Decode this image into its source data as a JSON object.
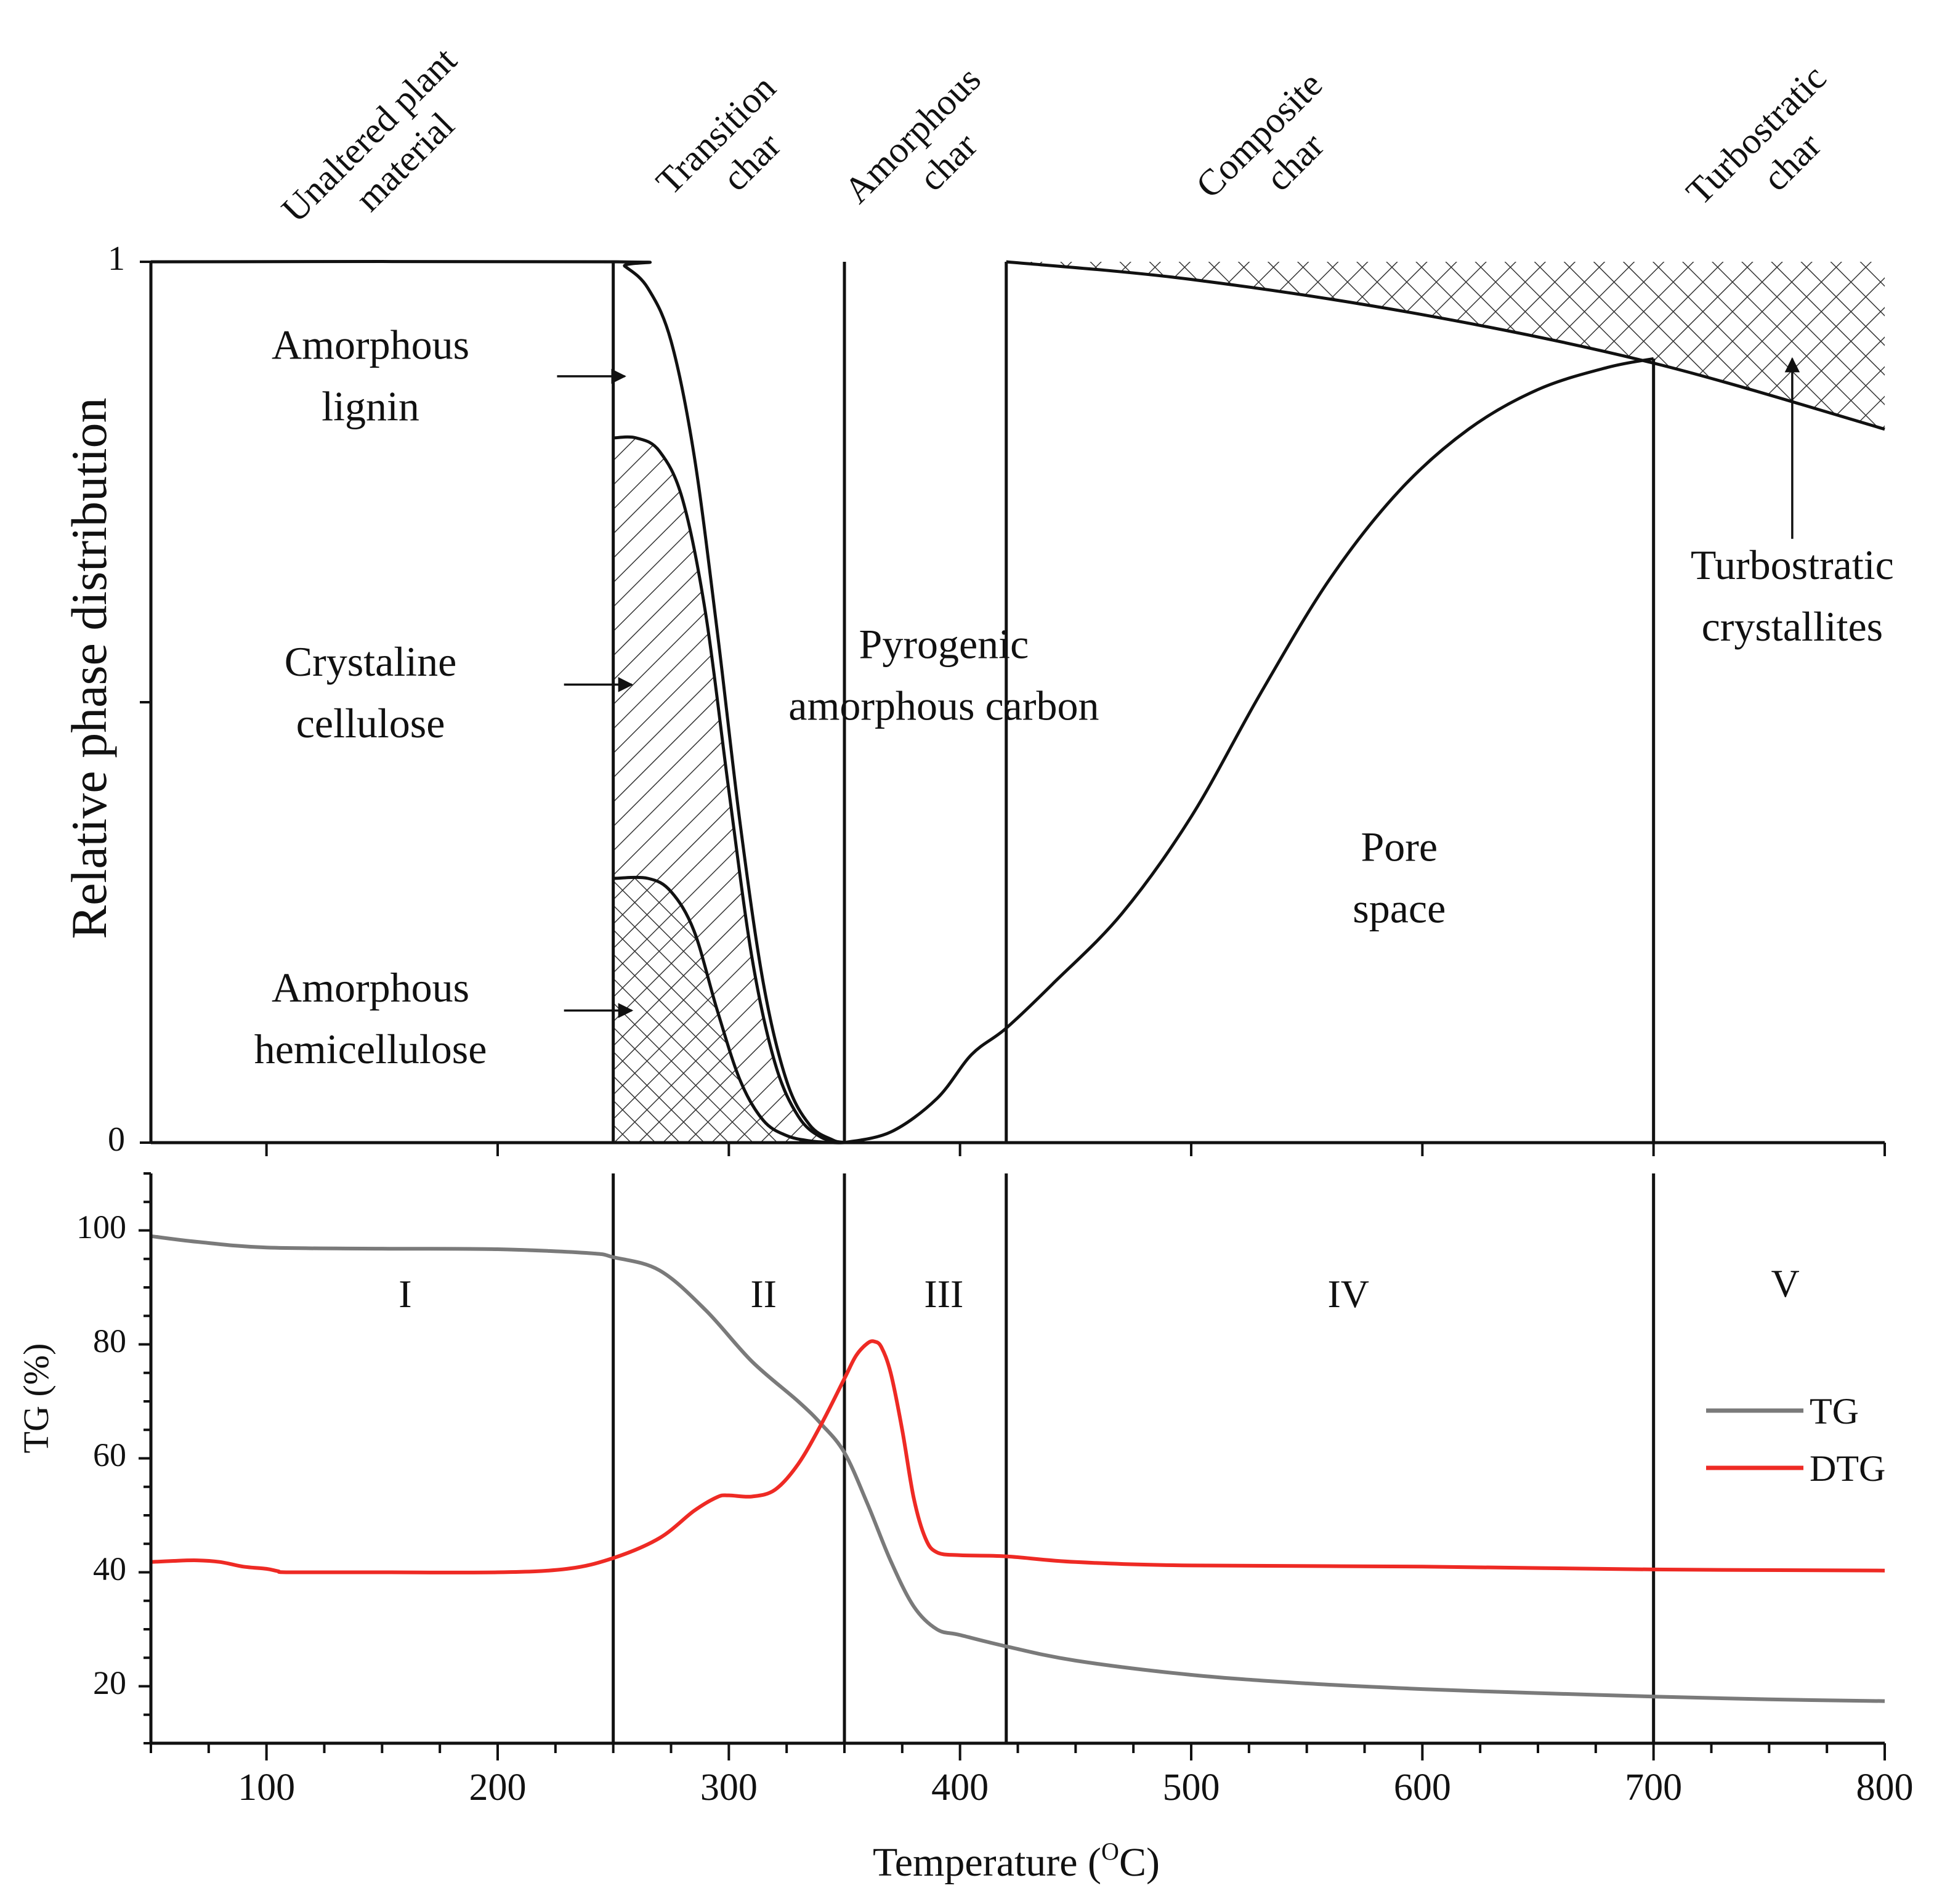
{
  "colors": {
    "tg": "#7a7a7a",
    "dtg": "#ee2a24",
    "ink": "#111111",
    "hatch": "#333333"
  },
  "chart_data": [
    {
      "type": "area",
      "name": "phase-distribution",
      "ylabel": "Relative phase distribution",
      "xlim": [
        50,
        800
      ],
      "ylim": [
        0,
        1
      ],
      "y_ticks": [
        0,
        0.5,
        1
      ],
      "y_tick_labels": [
        "0",
        "",
        "1"
      ],
      "stages": [
        {
          "line1": "Unaltered plant",
          "line2": "material",
          "x": 150
        },
        {
          "line1": "Transition",
          "line2": "char",
          "x": 300
        },
        {
          "line1": "Amorphous",
          "line2": "char",
          "x": 385
        },
        {
          "line1": "Composite",
          "line2": "char",
          "x": 535
        },
        {
          "line1": "Turbostratic",
          "line2": "char",
          "x": 750
        }
      ],
      "boundaries": [
        {
          "x": 250,
          "y0": 0,
          "y1": 1
        },
        {
          "x": 350,
          "y0": 0,
          "y1": 1
        },
        {
          "x": 420,
          "y0": 0,
          "y1": 1
        },
        {
          "x": 700,
          "y0": 0,
          "y1": 0.89
        }
      ],
      "series": [
        {
          "name": "Amorphous lignin (total plant material)",
          "x": [
            50,
            250,
            255,
            265,
            275,
            285,
            295,
            305,
            315,
            325,
            335,
            345,
            350
          ],
          "y": [
            1,
            1,
            0.995,
            0.97,
            0.91,
            0.78,
            0.58,
            0.36,
            0.18,
            0.07,
            0.02,
            0.003,
            0
          ]
        },
        {
          "name": "Crystaline cellulose (upper bound)",
          "x": [
            250,
            260,
            270,
            280,
            290,
            300,
            310,
            320,
            330,
            340,
            350
          ],
          "y": [
            0.8,
            0.8,
            0.785,
            0.73,
            0.6,
            0.4,
            0.21,
            0.09,
            0.03,
            0.006,
            0
          ]
        },
        {
          "name": "Amorphous hemicellulose (upper bound)",
          "x": [
            250,
            265,
            275,
            285,
            295,
            305,
            315,
            325,
            335,
            345,
            350
          ],
          "y": [
            0.3,
            0.3,
            0.285,
            0.24,
            0.15,
            0.07,
            0.025,
            0.008,
            0.002,
            0,
            0
          ]
        },
        {
          "name": "Pyrogenic amorphous carbon / pore space boundary",
          "x": [
            350,
            370,
            390,
            405,
            420,
            440,
            470,
            500,
            530,
            560,
            590,
            620,
            650,
            680,
            700
          ],
          "y": [
            0,
            0.012,
            0.05,
            0.1,
            0.13,
            0.18,
            0.26,
            0.37,
            0.51,
            0.64,
            0.74,
            0.81,
            0.855,
            0.88,
            0.89
          ]
        },
        {
          "name": "Turbostratic crystallites (lower bound)",
          "x": [
            420,
            500,
            600,
            700,
            800
          ],
          "y": [
            1,
            0.98,
            0.94,
            0.885,
            0.81
          ]
        }
      ],
      "annotations": [
        {
          "line1": "Amorphous",
          "line2": "lignin",
          "x": 145,
          "y": 0.89,
          "arrow_to": [
            255,
            0.87
          ]
        },
        {
          "line1": "Crystaline",
          "line2": "cellulose",
          "x": 145,
          "y": 0.53,
          "arrow_to": [
            258,
            0.52
          ]
        },
        {
          "line1": "Amorphous",
          "line2": "hemicellulose",
          "x": 145,
          "y": 0.16,
          "arrow_to": [
            258,
            0.15
          ]
        },
        {
          "line1": "Pyrogenic",
          "line2": "amorphous carbon",
          "x": 393,
          "y": 0.55
        },
        {
          "line1": "Pore",
          "line2": "space",
          "x": 590,
          "y": 0.32
        },
        {
          "line1": "Turbostratic",
          "line2": "crystallites",
          "x": 760,
          "y": 0.64,
          "arrow_to": [
            760,
            0.89
          ]
        }
      ]
    },
    {
      "type": "line",
      "name": "thermogravimetric",
      "xlabel": "Temperature (°C)",
      "xlabel_main": "Temperature (",
      "xlabel_sup": "O",
      "xlabel_end": "C)",
      "ylabel": "TG (%)",
      "xlim": [
        50,
        800
      ],
      "ylim": [
        10,
        110
      ],
      "x_ticks": [
        100,
        200,
        300,
        400,
        500,
        600,
        700,
        800
      ],
      "y_ticks": [
        20,
        40,
        60,
        80,
        100
      ],
      "regions": [
        {
          "label": "I",
          "x": 160
        },
        {
          "label": "II",
          "x": 315
        },
        {
          "label": "III",
          "x": 393
        },
        {
          "label": "IV",
          "x": 568
        },
        {
          "label": "V",
          "x": 757
        }
      ],
      "boundaries": [
        250,
        350,
        420,
        700
      ],
      "legend": {
        "position": "right",
        "entries": [
          "TG",
          "DTG"
        ]
      },
      "series": [
        {
          "name": "TG",
          "x": [
            50,
            70,
            100,
            150,
            200,
            240,
            250,
            270,
            290,
            310,
            330,
            340,
            350,
            360,
            370,
            380,
            390,
            400,
            420,
            450,
            500,
            550,
            600,
            650,
            700,
            750,
            800
          ],
          "y": [
            99,
            98,
            97,
            96.8,
            96.7,
            96,
            95.3,
            93,
            86,
            77,
            70,
            66,
            61,
            52,
            42,
            34,
            30,
            29,
            27,
            24.5,
            22,
            20.5,
            19.5,
            18.8,
            18.2,
            17.7,
            17.4
          ]
        },
        {
          "name": "DTG",
          "x": [
            50,
            60,
            70,
            80,
            90,
            100,
            105,
            110,
            150,
            200,
            230,
            250,
            270,
            285,
            295,
            300,
            310,
            320,
            330,
            340,
            350,
            355,
            360,
            363,
            366,
            370,
            375,
            380,
            385,
            390,
            400,
            420,
            450,
            500,
            600,
            700,
            800
          ],
          "y": [
            41.8,
            42,
            42.1,
            41.8,
            41,
            40.6,
            40.2,
            40,
            40,
            40,
            40.6,
            42.5,
            46,
            50.8,
            53.2,
            53.5,
            53.3,
            54.5,
            59,
            66,
            74,
            78,
            80.2,
            80.5,
            79.5,
            75,
            65,
            53,
            46,
            43.5,
            43,
            42.8,
            41.8,
            41.2,
            41,
            40.5,
            40.3
          ]
        }
      ]
    }
  ]
}
